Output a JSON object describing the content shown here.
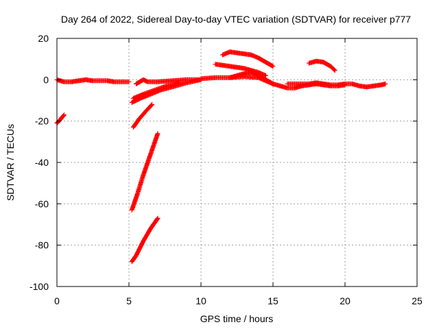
{
  "chart_data": {
    "type": "scatter",
    "title": "Day 264 of 2022, Sidereal Day-to-day VTEC variation (SDTVAR) for receiver p777",
    "xlabel": "GPS time / hours",
    "ylabel": "SDTVAR / TECUs",
    "xlim": [
      0,
      25
    ],
    "ylim": [
      -100,
      20
    ],
    "xticks": [
      0,
      5,
      10,
      15,
      20,
      25
    ],
    "yticks": [
      -100,
      -80,
      -60,
      -40,
      -20,
      0,
      20
    ],
    "xtick_labels": [
      "0",
      "5",
      "10",
      "15",
      "20",
      "25"
    ],
    "ytick_labels": [
      "-100",
      "-80",
      "-60",
      "-40",
      "-20",
      "0",
      "20"
    ],
    "grid": true,
    "marker": "plus",
    "color": "#ff0000",
    "series": [
      {
        "name": "seg-1",
        "x": [
          0.0,
          0.2,
          0.5
        ],
        "y": [
          -21,
          -19.5,
          -17
        ]
      },
      {
        "name": "seg-2",
        "x": [
          0.0,
          0.5,
          1.0,
          1.5,
          2.0,
          2.5,
          3.0,
          3.5,
          4.0,
          4.5,
          5.0
        ],
        "y": [
          0,
          -1,
          -1,
          -0.5,
          0,
          -0.5,
          -0.5,
          -0.5,
          -1,
          -1,
          -1
        ]
      },
      {
        "name": "seg-3",
        "x": [
          5.2,
          5.5,
          6.0,
          6.5,
          7.0
        ],
        "y": [
          -88,
          -85,
          -78,
          -72,
          -67
        ]
      },
      {
        "name": "seg-4",
        "x": [
          5.2,
          5.6,
          6.0,
          6.5,
          7.0
        ],
        "y": [
          -63,
          -55,
          -46,
          -36,
          -26
        ]
      },
      {
        "name": "seg-5",
        "x": [
          5.3,
          5.7,
          6.2,
          6.6
        ],
        "y": [
          -23,
          -19,
          -15,
          -12
        ]
      },
      {
        "name": "seg-6",
        "x": [
          5.2,
          5.8,
          6.5,
          7.2,
          8.0,
          9.0,
          10.0
        ],
        "y": [
          -11,
          -9,
          -7,
          -5,
          -3.5,
          -1.5,
          0
        ]
      },
      {
        "name": "seg-7",
        "x": [
          5.3,
          6.0,
          6.8,
          7.6,
          8.5
        ],
        "y": [
          -9,
          -7,
          -5,
          -3,
          -1.5
        ]
      },
      {
        "name": "seg-8",
        "x": [
          5.5,
          6.0,
          6.3,
          7.0,
          8.0,
          9.0,
          10.0
        ],
        "y": [
          -2,
          0,
          -1,
          -1,
          -0.5,
          0,
          0
        ]
      },
      {
        "name": "seg-9",
        "x": [
          10.0,
          11.0,
          12.0,
          13.0,
          14.0,
          15.0
        ],
        "y": [
          0.5,
          1,
          1,
          1.5,
          1,
          -2
        ]
      },
      {
        "name": "seg-10",
        "x": [
          11.0,
          11.5,
          12.0,
          12.5,
          13.0,
          13.5,
          14.0,
          14.5
        ],
        "y": [
          7.5,
          7,
          6.5,
          6,
          5.5,
          4.5,
          3.5,
          2
        ]
      },
      {
        "name": "seg-11",
        "x": [
          11.5,
          12.0,
          12.5,
          13.0,
          13.5,
          14.0,
          14.5,
          15.0
        ],
        "y": [
          12,
          13.5,
          13,
          12.5,
          12,
          10.5,
          8.5,
          6.5
        ]
      },
      {
        "name": "seg-12",
        "x": [
          12.0,
          12.5,
          13.0,
          13.5,
          14.0,
          14.5,
          15.0
        ],
        "y": [
          1,
          2,
          3,
          3.5,
          2,
          0,
          -2
        ]
      },
      {
        "name": "seg-13",
        "x": [
          15.0,
          15.5,
          16.0,
          16.5,
          17.0,
          17.5,
          18.0,
          18.5,
          19.0,
          19.5,
          20.0
        ],
        "y": [
          -2,
          -3,
          -4,
          -4,
          -3,
          -2.5,
          -2,
          -2.5,
          -3,
          -3,
          -2.5
        ]
      },
      {
        "name": "seg-14",
        "x": [
          16.0,
          16.5,
          17.0,
          17.5,
          18.0,
          18.5,
          19.0,
          19.5,
          20.0,
          20.5,
          21.0,
          21.5,
          22.0,
          22.5,
          22.8
        ],
        "y": [
          -2,
          -2,
          -2,
          -2,
          -1.5,
          -2,
          -2.5,
          -2.5,
          -2,
          -2,
          -3,
          -3.5,
          -3,
          -2.5,
          -2
        ]
      },
      {
        "name": "seg-15",
        "x": [
          17.5,
          18.0,
          18.5,
          19.0,
          19.3
        ],
        "y": [
          8,
          9,
          8.5,
          6.5,
          4.5
        ]
      }
    ]
  }
}
